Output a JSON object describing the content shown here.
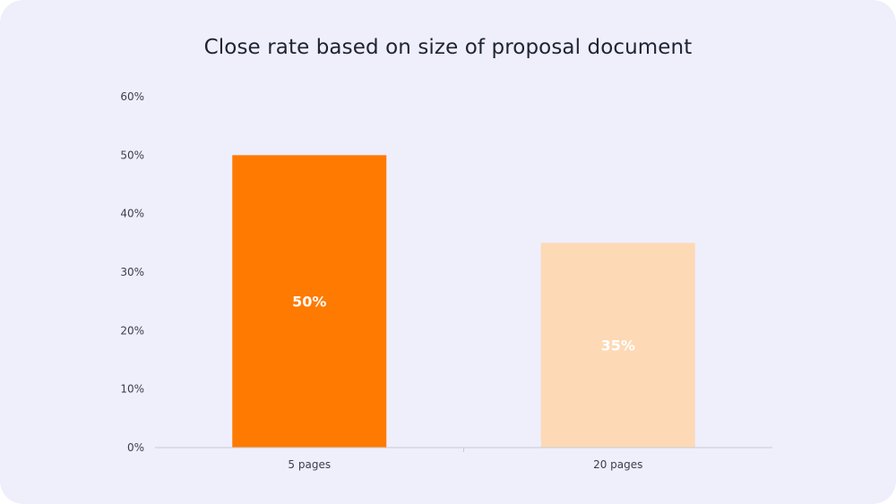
{
  "chart_data": {
    "type": "bar",
    "title": "Close rate based on size of proposal document",
    "xlabel": "",
    "ylabel": "",
    "categories": [
      "5 pages",
      "20 pages"
    ],
    "values": [
      50,
      35
    ],
    "data_labels": [
      "50%",
      "35%"
    ],
    "ylim": [
      0,
      60
    ],
    "yticks": [
      0,
      10,
      20,
      30,
      40,
      50,
      60
    ],
    "ytick_labels": [
      "0%",
      "10%",
      "20%",
      "30%",
      "40%",
      "50%",
      "60%"
    ],
    "bar_colors": [
      "#ff7a00",
      "#fdd9b5"
    ],
    "background_color": "#efeefb",
    "grid": false,
    "legend": "none"
  }
}
